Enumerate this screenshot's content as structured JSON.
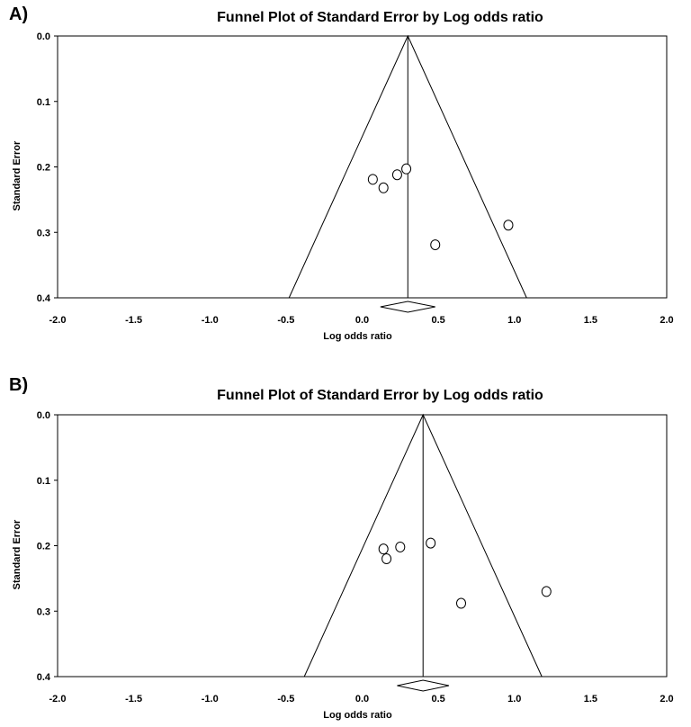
{
  "chart_data": [
    {
      "panel_label": "A)",
      "type": "scatter",
      "subtype": "funnel",
      "title": "Funnel Plot of Standard Error by Log odds ratio",
      "xlabel": "Log odds ratio",
      "ylabel": "Standard Error",
      "xlim": [
        -2.0,
        2.0
      ],
      "ylim": [
        0.4,
        0.0
      ],
      "y_inverted": true,
      "xticks": [
        "-2.0",
        "-1.5",
        "-1.0",
        "-0.5",
        "0.0",
        "0.5",
        "1.0",
        "1.5",
        "2.0"
      ],
      "yticks": [
        "0.0",
        "0.1",
        "0.2",
        "0.3",
        "0.4"
      ],
      "grid": false,
      "pooled_estimate": 0.3,
      "funnel_bounds_at_max_se": [
        -0.48,
        1.08
      ],
      "summary_diamond": [
        0.12,
        0.48
      ],
      "points": [
        {
          "x": 0.07,
          "y": 0.219
        },
        {
          "x": 0.14,
          "y": 0.232
        },
        {
          "x": 0.23,
          "y": 0.212
        },
        {
          "x": 0.29,
          "y": 0.203
        },
        {
          "x": 0.48,
          "y": 0.319
        },
        {
          "x": 0.96,
          "y": 0.289
        }
      ]
    },
    {
      "panel_label": "B)",
      "type": "scatter",
      "subtype": "funnel",
      "title": "Funnel Plot of Standard Error by Log odds ratio",
      "xlabel": "Log odds ratio",
      "ylabel": "Standard Error",
      "xlim": [
        -2.0,
        2.0
      ],
      "ylim": [
        0.4,
        0.0
      ],
      "y_inverted": true,
      "xticks": [
        "-2.0",
        "-1.5",
        "-1.0",
        "-0.5",
        "0.0",
        "0.5",
        "1.0",
        "1.5",
        "2.0"
      ],
      "yticks": [
        "0.0",
        "0.1",
        "0.2",
        "0.3",
        "0.4"
      ],
      "grid": false,
      "pooled_estimate": 0.4,
      "funnel_bounds_at_max_se": [
        -0.38,
        1.18
      ],
      "summary_diamond": [
        0.23,
        0.57
      ],
      "points": [
        {
          "x": 0.14,
          "y": 0.205
        },
        {
          "x": 0.16,
          "y": 0.22
        },
        {
          "x": 0.25,
          "y": 0.202
        },
        {
          "x": 0.45,
          "y": 0.196
        },
        {
          "x": 0.65,
          "y": 0.288
        },
        {
          "x": 1.21,
          "y": 0.27
        }
      ]
    }
  ]
}
